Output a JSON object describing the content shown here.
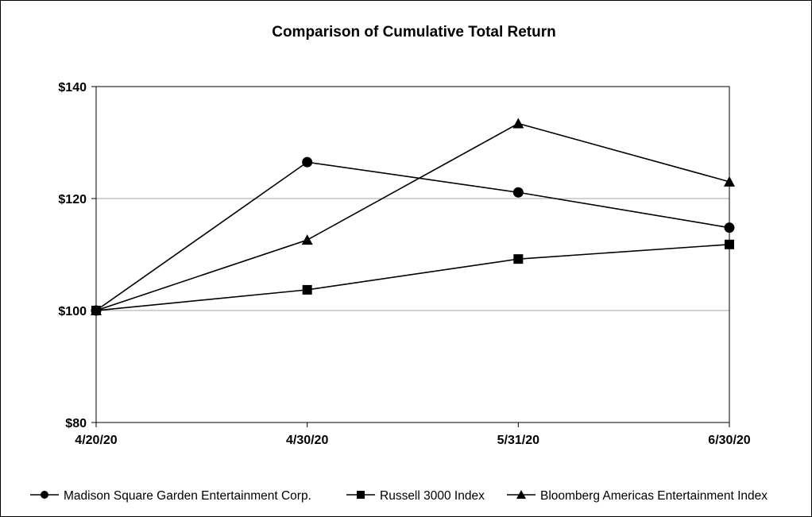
{
  "chart_data": {
    "type": "line",
    "title": "Comparison of Cumulative Total Return",
    "xlabel": "",
    "ylabel": "",
    "categories": [
      "4/20/20",
      "4/30/20",
      "5/31/20",
      "6/30/20"
    ],
    "y_ticks": [
      "$80",
      "$100",
      "$120",
      "$140"
    ],
    "y_tick_values": [
      80,
      100,
      120,
      140
    ],
    "ylim": [
      80,
      140
    ],
    "grid": "horizontal",
    "legend_position": "bottom",
    "series": [
      {
        "name": "Madison Square Garden Entertainment Corp.",
        "marker": "circle",
        "values": [
          100,
          126.5,
          121.1,
          114.8
        ]
      },
      {
        "name": "Russell 3000 Index",
        "marker": "square",
        "values": [
          100,
          103.7,
          109.2,
          111.8
        ]
      },
      {
        "name": "Bloomberg Americas Entertainment Index",
        "marker": "triangle",
        "values": [
          100,
          112.6,
          133.4,
          123.0
        ]
      }
    ],
    "line_color": "#000000",
    "grid_color": "#a6a6a6"
  }
}
